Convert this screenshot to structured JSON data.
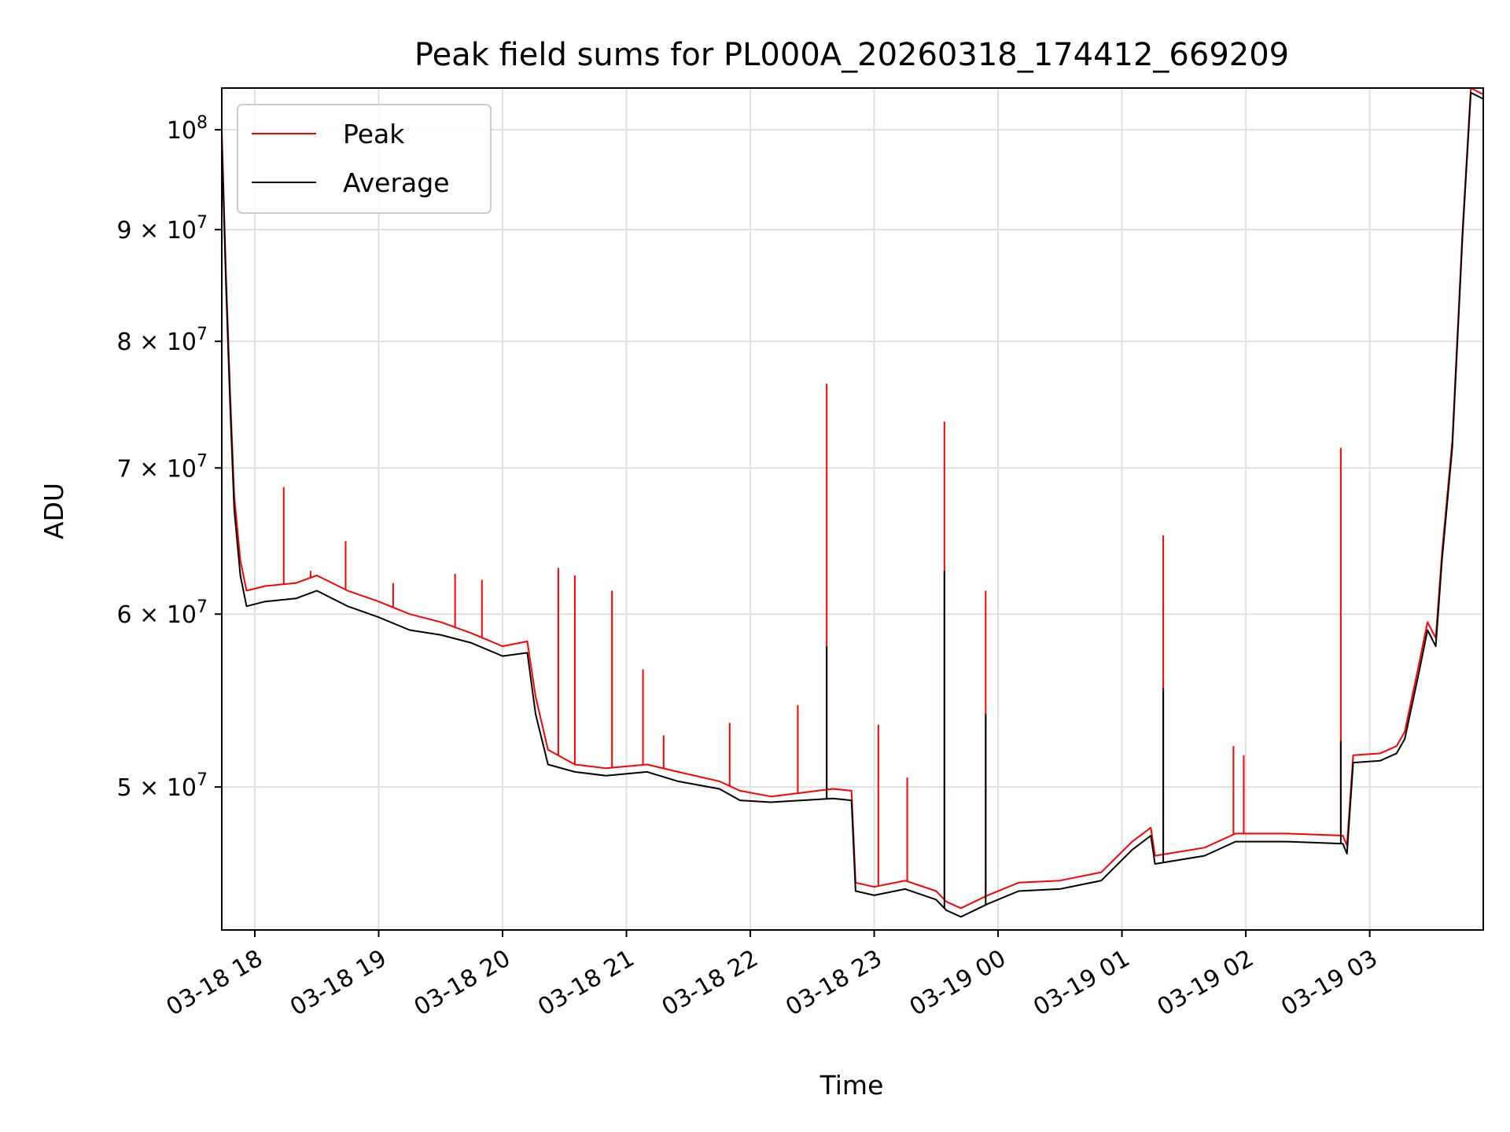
{
  "chart_data": {
    "type": "line",
    "title": "Peak field sums for PL000A_20260318_174412_669209",
    "xlabel": "Time",
    "ylabel": "ADU",
    "yscale": "log",
    "ylim": [
      43000000,
      104500000
    ],
    "xlim": [
      "2026-03-18 17:44",
      "2026-03-19 03:55"
    ],
    "grid": true,
    "legend_position": "upper-left",
    "y_ticks": [
      {
        "value": 50000000,
        "mantissa": "5",
        "exp": "7"
      },
      {
        "value": 60000000,
        "mantissa": "6",
        "exp": "7"
      },
      {
        "value": 70000000,
        "mantissa": "7",
        "exp": "7"
      },
      {
        "value": 80000000,
        "mantissa": "8",
        "exp": "7"
      },
      {
        "value": 90000000,
        "mantissa": "9",
        "exp": "7"
      },
      {
        "value": 100000000,
        "mantissa": "",
        "exp": "8"
      }
    ],
    "x_ticks": [
      {
        "time": "2026-03-18 18:00",
        "label": "03-18 18"
      },
      {
        "time": "2026-03-18 19:00",
        "label": "03-18 19"
      },
      {
        "time": "2026-03-18 20:00",
        "label": "03-18 20"
      },
      {
        "time": "2026-03-18 21:00",
        "label": "03-18 21"
      },
      {
        "time": "2026-03-18 22:00",
        "label": "03-18 22"
      },
      {
        "time": "2026-03-18 23:00",
        "label": "03-18 23"
      },
      {
        "time": "2026-03-19 00:00",
        "label": "03-19 00"
      },
      {
        "time": "2026-03-19 01:00",
        "label": "03-19 01"
      },
      {
        "time": "2026-03-19 02:00",
        "label": "03-19 02"
      },
      {
        "time": "2026-03-19 03:00",
        "label": "03-19 03"
      }
    ],
    "series": [
      {
        "name": "Peak",
        "color": "#ff0000",
        "points": [
          [
            "2026-03-18 17:44",
            100000000
          ],
          [
            "2026-03-18 17:46",
            86000000
          ],
          [
            "2026-03-18 17:48",
            76000000
          ],
          [
            "2026-03-18 17:50",
            68000000
          ],
          [
            "2026-03-18 17:53",
            63500000
          ],
          [
            "2026-03-18 17:56",
            61500000
          ],
          [
            "2026-03-18 18:05",
            61800000
          ],
          [
            "2026-03-18 18:20",
            62000000
          ],
          [
            "2026-03-18 18:30",
            62500000
          ],
          [
            "2026-03-18 18:45",
            61500000
          ],
          [
            "2026-03-18 19:00",
            60800000
          ],
          [
            "2026-03-18 19:15",
            60000000
          ],
          [
            "2026-03-18 19:30",
            59500000
          ],
          [
            "2026-03-18 19:45",
            58800000
          ],
          [
            "2026-03-18 20:00",
            58000000
          ],
          [
            "2026-03-18 20:12",
            58300000
          ],
          [
            "2026-03-18 20:16",
            55000000
          ],
          [
            "2026-03-18 20:22",
            52000000
          ],
          [
            "2026-03-18 20:35",
            51200000
          ],
          [
            "2026-03-18 20:50",
            51000000
          ],
          [
            "2026-03-18 21:10",
            51200000
          ],
          [
            "2026-03-18 21:25",
            50800000
          ],
          [
            "2026-03-18 21:45",
            50300000
          ],
          [
            "2026-03-18 21:55",
            49800000
          ],
          [
            "2026-03-18 22:10",
            49500000
          ],
          [
            "2026-03-18 22:25",
            49700000
          ],
          [
            "2026-03-18 22:40",
            49900000
          ],
          [
            "2026-03-18 22:49",
            49800000
          ],
          [
            "2026-03-18 22:51",
            45200000
          ],
          [
            "2026-03-18 23:00",
            45000000
          ],
          [
            "2026-03-18 23:15",
            45300000
          ],
          [
            "2026-03-18 23:30",
            44800000
          ],
          [
            "2026-03-18 23:35",
            44300000
          ],
          [
            "2026-03-18 23:42",
            44000000
          ],
          [
            "2026-03-18 23:55",
            44600000
          ],
          [
            "2026-03-19 00:10",
            45200000
          ],
          [
            "2026-03-19 00:30",
            45300000
          ],
          [
            "2026-03-19 00:50",
            45700000
          ],
          [
            "2026-03-19 01:05",
            47200000
          ],
          [
            "2026-03-19 01:14",
            47900000
          ],
          [
            "2026-03-19 01:16",
            46500000
          ],
          [
            "2026-03-19 01:40",
            46900000
          ],
          [
            "2026-03-19 01:55",
            47600000
          ],
          [
            "2026-03-19 02:20",
            47600000
          ],
          [
            "2026-03-19 02:47",
            47500000
          ],
          [
            "2026-03-19 02:49",
            47000000
          ],
          [
            "2026-03-19 02:52",
            51700000
          ],
          [
            "2026-03-19 03:05",
            51800000
          ],
          [
            "2026-03-19 03:13",
            52200000
          ],
          [
            "2026-03-19 03:17",
            53000000
          ],
          [
            "2026-03-19 03:24",
            57000000
          ],
          [
            "2026-03-19 03:28",
            59500000
          ],
          [
            "2026-03-19 03:32",
            58500000
          ],
          [
            "2026-03-19 03:35",
            64000000
          ],
          [
            "2026-03-19 03:40",
            72000000
          ],
          [
            "2026-03-19 03:45",
            90000000
          ],
          [
            "2026-03-19 03:49",
            104500000
          ],
          [
            "2026-03-19 03:55",
            103800000
          ]
        ],
        "spikes": [
          [
            "2026-03-18 18:14",
            68600000
          ],
          [
            "2026-03-18 18:27",
            62800000
          ],
          [
            "2026-03-18 18:44",
            64800000
          ],
          [
            "2026-03-18 19:07",
            62000000
          ],
          [
            "2026-03-18 19:37",
            62600000
          ],
          [
            "2026-03-18 19:50",
            62200000
          ],
          [
            "2026-03-18 20:27",
            63000000
          ],
          [
            "2026-03-18 20:35",
            62500000
          ],
          [
            "2026-03-18 20:53",
            61500000
          ],
          [
            "2026-03-18 21:08",
            56600000
          ],
          [
            "2026-03-18 21:18",
            52800000
          ],
          [
            "2026-03-18 21:50",
            53500000
          ],
          [
            "2026-03-18 22:23",
            54500000
          ],
          [
            "2026-03-18 22:37",
            76500000
          ],
          [
            "2026-03-18 23:02",
            53400000
          ],
          [
            "2026-03-18 23:16",
            50500000
          ],
          [
            "2026-03-18 23:34",
            73500000
          ],
          [
            "2026-03-18 23:54",
            61500000
          ],
          [
            "2026-03-19 01:20",
            65200000
          ],
          [
            "2026-03-19 01:54",
            52200000
          ],
          [
            "2026-03-19 01:59",
            51700000
          ],
          [
            "2026-03-19 02:46",
            71500000
          ]
        ]
      },
      {
        "name": "Average",
        "color": "#000000",
        "points": [
          [
            "2026-03-18 17:44",
            99000000
          ],
          [
            "2026-03-18 17:46",
            85000000
          ],
          [
            "2026-03-18 17:48",
            75000000
          ],
          [
            "2026-03-18 17:50",
            67000000
          ],
          [
            "2026-03-18 17:53",
            62500000
          ],
          [
            "2026-03-18 17:56",
            60500000
          ],
          [
            "2026-03-18 18:05",
            60800000
          ],
          [
            "2026-03-18 18:20",
            61000000
          ],
          [
            "2026-03-18 18:30",
            61500000
          ],
          [
            "2026-03-18 18:45",
            60500000
          ],
          [
            "2026-03-18 19:00",
            59800000
          ],
          [
            "2026-03-18 19:15",
            59000000
          ],
          [
            "2026-03-18 19:30",
            58700000
          ],
          [
            "2026-03-18 19:45",
            58200000
          ],
          [
            "2026-03-18 20:00",
            57400000
          ],
          [
            "2026-03-18 20:12",
            57600000
          ],
          [
            "2026-03-18 20:16",
            54000000
          ],
          [
            "2026-03-18 20:22",
            51200000
          ],
          [
            "2026-03-18 20:35",
            50800000
          ],
          [
            "2026-03-18 20:50",
            50600000
          ],
          [
            "2026-03-18 21:10",
            50800000
          ],
          [
            "2026-03-18 21:25",
            50300000
          ],
          [
            "2026-03-18 21:45",
            49900000
          ],
          [
            "2026-03-18 21:55",
            49300000
          ],
          [
            "2026-03-18 22:10",
            49200000
          ],
          [
            "2026-03-18 22:25",
            49300000
          ],
          [
            "2026-03-18 22:40",
            49400000
          ],
          [
            "2026-03-18 22:49",
            49300000
          ],
          [
            "2026-03-18 22:51",
            44800000
          ],
          [
            "2026-03-18 23:00",
            44600000
          ],
          [
            "2026-03-18 23:15",
            44900000
          ],
          [
            "2026-03-18 23:30",
            44400000
          ],
          [
            "2026-03-18 23:35",
            43900000
          ],
          [
            "2026-03-18 23:42",
            43600000
          ],
          [
            "2026-03-18 23:55",
            44200000
          ],
          [
            "2026-03-19 00:10",
            44800000
          ],
          [
            "2026-03-19 00:30",
            44900000
          ],
          [
            "2026-03-19 00:50",
            45300000
          ],
          [
            "2026-03-19 01:05",
            46800000
          ],
          [
            "2026-03-19 01:14",
            47500000
          ],
          [
            "2026-03-19 01:16",
            46100000
          ],
          [
            "2026-03-19 01:40",
            46500000
          ],
          [
            "2026-03-19 01:55",
            47200000
          ],
          [
            "2026-03-19 02:20",
            47200000
          ],
          [
            "2026-03-19 02:47",
            47100000
          ],
          [
            "2026-03-19 02:49",
            46600000
          ],
          [
            "2026-03-19 02:52",
            51300000
          ],
          [
            "2026-03-19 03:05",
            51400000
          ],
          [
            "2026-03-19 03:13",
            51800000
          ],
          [
            "2026-03-19 03:17",
            52600000
          ],
          [
            "2026-03-19 03:24",
            56500000
          ],
          [
            "2026-03-19 03:28",
            59000000
          ],
          [
            "2026-03-19 03:32",
            58000000
          ],
          [
            "2026-03-19 03:35",
            63500000
          ],
          [
            "2026-03-19 03:40",
            71500000
          ],
          [
            "2026-03-19 03:45",
            89500000
          ],
          [
            "2026-03-19 03:49",
            104000000
          ],
          [
            "2026-03-19 03:55",
            103300000
          ]
        ],
        "spikes": [
          [
            "2026-03-18 22:37",
            58000000
          ],
          [
            "2026-03-18 23:34",
            62800000
          ],
          [
            "2026-03-18 23:54",
            54000000
          ],
          [
            "2026-03-19 01:20",
            55500000
          ],
          [
            "2026-03-19 02:46",
            52500000
          ]
        ]
      }
    ]
  }
}
